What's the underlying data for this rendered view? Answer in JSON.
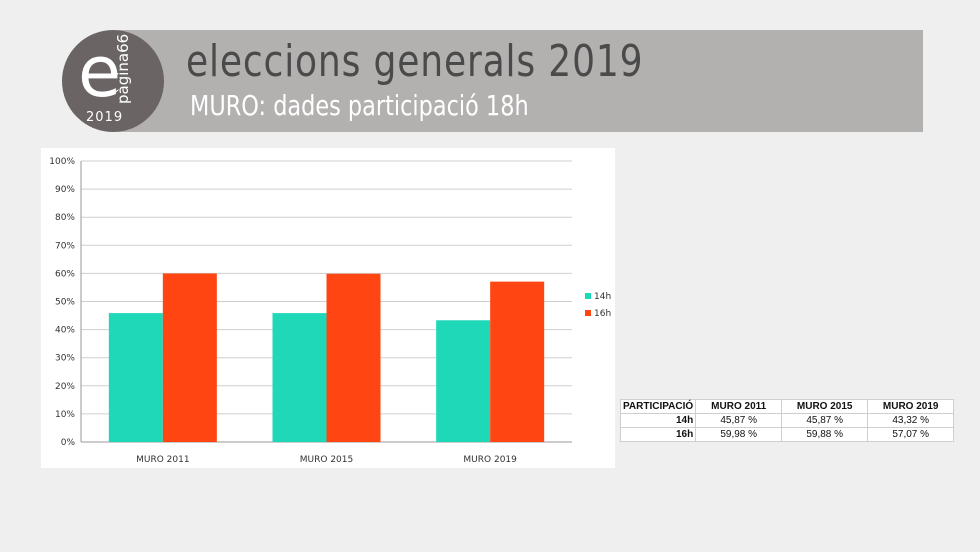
{
  "header": {
    "title": "eleccions generals 2019",
    "subtitle": "MURO: dades participació 18h"
  },
  "logo": {
    "letter": "e",
    "word": "pàgina66",
    "year": "2019"
  },
  "colors": {
    "series_14h": "#1fd8b8",
    "series_16h": "#ff4511"
  },
  "chart_data": {
    "type": "bar",
    "title": "",
    "xlabel": "",
    "ylabel": "",
    "categories": [
      "MURO 2011",
      "MURO 2015",
      "MURO 2019"
    ],
    "series": [
      {
        "name": "14h",
        "values": [
          45.87,
          45.87,
          43.32
        ]
      },
      {
        "name": "16h",
        "values": [
          59.98,
          59.88,
          57.07
        ]
      }
    ],
    "ylim": [
      0,
      100
    ],
    "yticks": [
      "0%",
      "10%",
      "20%",
      "30%",
      "40%",
      "50%",
      "60%",
      "70%",
      "80%",
      "90%",
      "100%"
    ],
    "grid": true,
    "legend": "right"
  },
  "table": {
    "header": [
      "PARTICIPACIÓ",
      "MURO 2011",
      "MURO 2015",
      "MURO 2019"
    ],
    "rows": [
      {
        "label": "14h",
        "cells": [
          "45,87 %",
          "45,87 %",
          "43,32 %"
        ]
      },
      {
        "label": "16h",
        "cells": [
          "59,98 %",
          "59,88 %",
          "57,07 %"
        ]
      }
    ]
  }
}
